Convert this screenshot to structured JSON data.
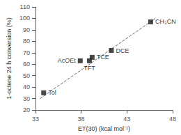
{
  "chart_data": {
    "type": "scatter",
    "x": [
      33.9,
      37.9,
      38.9,
      39.2,
      41.3,
      45.6
    ],
    "values": [
      35,
      63,
      63,
      66,
      72,
      97
    ],
    "labels": [
      "Tol",
      "AcOEt",
      "TFT",
      "TCE",
      "DCE",
      "CH₃CN"
    ],
    "color": "#1a1a1a",
    "marker": "square",
    "trendline": {
      "x": [
        33.5,
        46.2
      ],
      "values": [
        30.0,
        100.5
      ],
      "color": "#666666",
      "line_style": "dashed"
    },
    "xlabel": "ET(30) (kcal mol⁻¹)",
    "ylabel": "1-octene 24 h conversion (%)",
    "xlim": [
      33,
      48
    ],
    "xticks": [
      33,
      38,
      43,
      48
    ],
    "ylim": [
      20,
      110
    ],
    "yticks": [
      20,
      30,
      40,
      50,
      60,
      70,
      80,
      90,
      100,
      110
    ],
    "grid": false
  }
}
